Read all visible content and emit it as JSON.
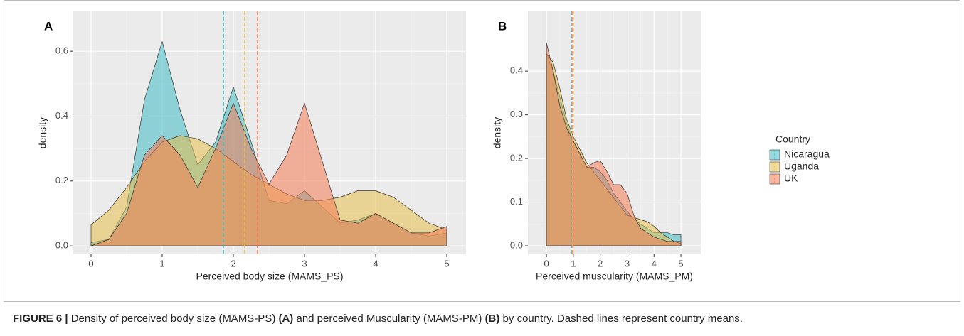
{
  "chart_data": [
    {
      "type": "density",
      "panel": "A",
      "xlabel": "Perceived body size (MAMS_PS)",
      "ylabel": "density",
      "x": [
        0,
        0.25,
        0.5,
        0.75,
        1,
        1.25,
        1.5,
        1.75,
        2,
        2.25,
        2.5,
        2.75,
        3,
        3.25,
        3.5,
        3.75,
        4,
        4.25,
        4.5,
        4.75,
        5
      ],
      "series": [
        {
          "name": "Nicaragua",
          "color": "#3fbcc4",
          "mean": 1.86,
          "values": [
            0.01,
            0.02,
            0.12,
            0.45,
            0.63,
            0.42,
            0.25,
            0.32,
            0.49,
            0.32,
            0.14,
            0.13,
            0.17,
            0.12,
            0.07,
            0.08,
            0.1,
            0.07,
            0.04,
            0.03,
            0.04
          ]
        },
        {
          "name": "Uganda",
          "color": "#e6c04f",
          "mean": 2.16,
          "values": [
            0.065,
            0.11,
            0.18,
            0.26,
            0.32,
            0.34,
            0.33,
            0.3,
            0.26,
            0.22,
            0.19,
            0.16,
            0.14,
            0.14,
            0.15,
            0.17,
            0.17,
            0.15,
            0.11,
            0.07,
            0.05
          ]
        },
        {
          "name": "UK",
          "color": "#f47c55",
          "mean": 2.34,
          "values": [
            0,
            0.02,
            0.1,
            0.28,
            0.34,
            0.28,
            0.18,
            0.3,
            0.44,
            0.3,
            0.19,
            0.28,
            0.44,
            0.26,
            0.08,
            0.07,
            0.1,
            0.07,
            0.04,
            0.04,
            0.06
          ]
        }
      ],
      "xlim": [
        -0.25,
        5.27
      ],
      "ylim": [
        -0.026,
        0.723
      ],
      "xticks": [
        0,
        1,
        2,
        3,
        4,
        5
      ],
      "yticks": [
        {
          "value": 0,
          "label": "0.0"
        },
        0.2,
        0.4,
        0.6
      ],
      "grid": true
    },
    {
      "type": "density",
      "panel": "B",
      "xlabel": "Perceived muscularity (MAMS_PM)",
      "ylabel": "density",
      "x": [
        0,
        0.25,
        0.5,
        0.75,
        1,
        1.25,
        1.5,
        1.75,
        2,
        2.25,
        2.5,
        2.75,
        3,
        3.25,
        3.5,
        3.75,
        4,
        4.25,
        4.5,
        4.75,
        5
      ],
      "series": [
        {
          "name": "Nicaragua",
          "color": "#3fbcc4",
          "mean": 0.95,
          "values": [
            0.44,
            0.4,
            0.34,
            0.28,
            0.24,
            0.21,
            0.18,
            0.18,
            0.17,
            0.15,
            0.12,
            0.1,
            0.08,
            0.06,
            0.05,
            0.04,
            0.03,
            0.03,
            0.03,
            0.025,
            0.025
          ]
        },
        {
          "name": "Uganda",
          "color": "#e6c04f",
          "mean": 0.97,
          "values": [
            0.44,
            0.42,
            0.36,
            0.29,
            0.25,
            0.22,
            0.19,
            0.17,
            0.15,
            0.13,
            0.11,
            0.09,
            0.07,
            0.065,
            0.06,
            0.055,
            0.045,
            0.03,
            0.02,
            0.01,
            0.005
          ]
        },
        {
          "name": "UK",
          "color": "#f47c55",
          "mean": 0.99,
          "values": [
            0.465,
            0.4,
            0.32,
            0.27,
            0.24,
            0.21,
            0.18,
            0.19,
            0.195,
            0.17,
            0.14,
            0.14,
            0.12,
            0.07,
            0.04,
            0.03,
            0.02,
            0.015,
            0.01,
            0.01,
            0.01
          ]
        }
      ],
      "xlim": [
        -0.69,
        5.74
      ],
      "ylim": [
        -0.0195,
        0.537
      ],
      "xticks": [
        0,
        1,
        2,
        3,
        4,
        5
      ],
      "yticks": [
        {
          "value": 0,
          "label": "0.0"
        },
        0.1,
        0.2,
        0.3,
        0.4
      ],
      "grid": true,
      "legend": {
        "title": "Country",
        "position": "right"
      }
    }
  ],
  "caption": [
    {
      "text": "FIGURE 6 |",
      "bold": true
    },
    {
      "text": " Density of perceived body size (MAMS-PS) ",
      "bold": false
    },
    {
      "text": "(A)",
      "bold": true
    },
    {
      "text": " and perceived Muscularity (MAMS-PM) ",
      "bold": false
    },
    {
      "text": "(B)",
      "bold": true
    },
    {
      "text": " by country. Dashed lines represent country means.",
      "bold": false
    }
  ]
}
